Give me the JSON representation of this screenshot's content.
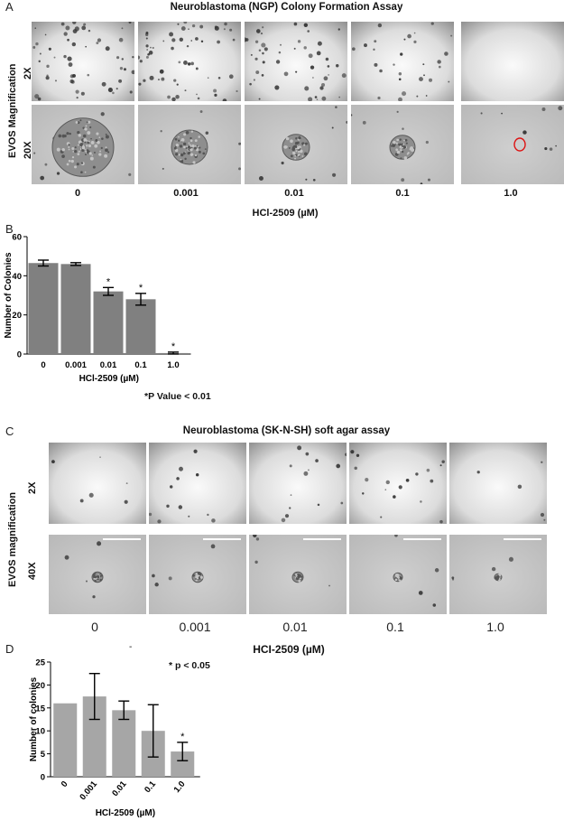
{
  "panel_a": {
    "letter": "A",
    "title": "Neuroblastoma (NGP) Colony Formation Assay",
    "side_label": "EVOS Magnification",
    "row_labels": [
      "2X",
      "20X"
    ],
    "doses": [
      "0",
      "0.001",
      "0.01",
      "0.1",
      "1.0"
    ],
    "x_title": "HCl-2509 (µM)"
  },
  "panel_b": {
    "letter": "B",
    "note": "*P  Value < 0.01"
  },
  "panel_c": {
    "letter": "C",
    "title": "Neuroblastoma (SK-N-SH) soft agar assay",
    "side_label": "EVOS magnification",
    "row_labels": [
      "2X",
      "40X"
    ],
    "doses": [
      "0",
      "0.001",
      "0.01",
      "0.1",
      "1.0"
    ],
    "x_title": "HCI-2509 (µM)"
  },
  "panel_d": {
    "letter": "D",
    "note": "* p < 0.05",
    "dash": "-"
  },
  "chart_data": [
    {
      "type": "bar",
      "categories": [
        "0",
        "0.001",
        "0.01",
        "0.1",
        "1.0"
      ],
      "values": [
        46.5,
        46,
        32,
        28,
        0.5
      ],
      "errors": [
        1.5,
        0.7,
        2,
        3,
        0.5
      ],
      "significance": [
        "",
        "",
        "*",
        "*",
        "*"
      ],
      "ylabel": "Number of Colonies",
      "xlabel": "HCl-2509 (µM)",
      "ylim": [
        0,
        60
      ],
      "yticks": [
        0,
        20,
        40,
        60
      ],
      "bar_color": "#808080"
    },
    {
      "type": "bar",
      "categories": [
        "0",
        "0.001",
        "0.01",
        "0.1",
        "1.0"
      ],
      "values": [
        16,
        17.5,
        14.5,
        10,
        5.5
      ],
      "errors": [
        0,
        5,
        2,
        5.7,
        2
      ],
      "significance": [
        "",
        "",
        "",
        "",
        "*"
      ],
      "ylabel": "Number of colonies",
      "xlabel": "HCl-2509 (µM)",
      "ylim": [
        0,
        25
      ],
      "yticks": [
        0,
        5,
        10,
        15,
        20,
        25
      ],
      "bar_color": "#a6a6a6"
    }
  ]
}
